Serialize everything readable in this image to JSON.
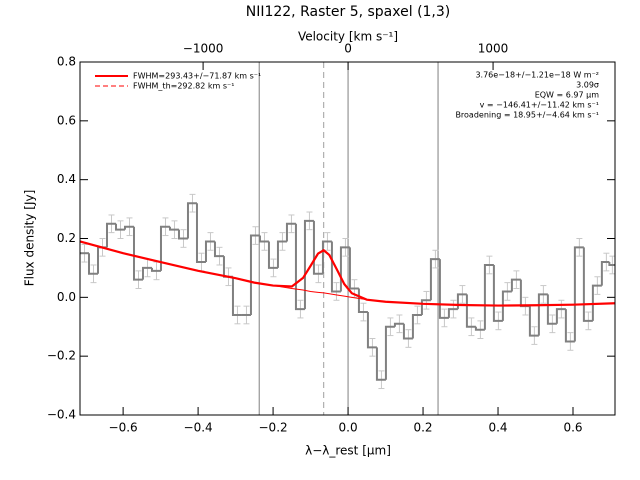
{
  "chart_data": {
    "type": "step",
    "title": "NII122, Raster 5, spaxel (1,3)",
    "xlabel": "λ−λ_rest [μm]",
    "ylabel": "Flux density [Jy]",
    "x2label": "Velocity [km s⁻¹]",
    "xlim": [
      -0.715,
      0.712
    ],
    "ylim": [
      -0.4,
      0.8
    ],
    "x2lim": [
      -1849,
      1841
    ],
    "xticks": [
      {
        "value": -0.6,
        "label": "−0.6"
      },
      {
        "value": -0.4,
        "label": "−0.4"
      },
      {
        "value": -0.2,
        "label": "−0.2"
      },
      {
        "value": 0,
        "label": "0.0"
      },
      {
        "value": 0.2,
        "label": "0.2"
      },
      {
        "value": 0.4,
        "label": "0.4"
      },
      {
        "value": 0.6,
        "label": "0.6"
      }
    ],
    "yticks": [
      {
        "value": -0.4,
        "label": "−0.4"
      },
      {
        "value": -0.2,
        "label": "−0.2"
      },
      {
        "value": 0,
        "label": "0.0"
      },
      {
        "value": 0.2,
        "label": "0.2"
      },
      {
        "value": 0.4,
        "label": "0.4"
      },
      {
        "value": 0.6,
        "label": "0.6"
      },
      {
        "value": 0.8,
        "label": "0.8"
      }
    ],
    "x2ticks": [
      {
        "value": -1000,
        "label": "−1000"
      },
      0,
      1000
    ],
    "color": "#808080",
    "error_color": "#c8c8c8",
    "x": [
      -0.703,
      -0.679,
      -0.655,
      -0.631,
      -0.607,
      -0.583,
      -0.559,
      -0.535,
      -0.511,
      -0.487,
      -0.463,
      -0.439,
      -0.415,
      -0.391,
      -0.367,
      -0.343,
      -0.319,
      -0.295,
      -0.271,
      -0.247,
      -0.223,
      -0.199,
      -0.175,
      -0.151,
      -0.127,
      -0.103,
      -0.079,
      -0.055,
      -0.031,
      -0.007,
      0.017,
      0.041,
      0.065,
      0.089,
      0.113,
      0.137,
      0.161,
      0.185,
      0.209,
      0.233,
      0.257,
      0.281,
      0.305,
      0.329,
      0.353,
      0.377,
      0.401,
      0.425,
      0.449,
      0.473,
      0.497,
      0.521,
      0.545,
      0.569,
      0.593,
      0.617,
      0.641,
      0.665,
      0.689,
      0.705
    ],
    "values": [
      0.15,
      0.08,
      0.17,
      0.25,
      0.23,
      0.24,
      0.06,
      0.1,
      0.09,
      0.24,
      0.23,
      0.2,
      0.32,
      0.12,
      0.19,
      0.14,
      0.07,
      -0.06,
      -0.06,
      0.21,
      0.19,
      0.1,
      0.19,
      0.25,
      -0.04,
      0.26,
      0.08,
      0.19,
      0.02,
      0.17,
      0.03,
      -0.05,
      -0.17,
      -0.28,
      -0.1,
      -0.09,
      -0.14,
      -0.06,
      -0.01,
      0.13,
      -0.07,
      -0.04,
      0.01,
      -0.1,
      -0.11,
      0.11,
      -0.08,
      0.02,
      0.06,
      -0.03,
      -0.13,
      0.01,
      -0.09,
      -0.04,
      -0.15,
      0.17,
      -0.08,
      0.04,
      0.12,
      0.11
    ],
    "errors": [
      0.03,
      0.03,
      0.03,
      0.03,
      0.03,
      0.03,
      0.03,
      0.03,
      0.03,
      0.03,
      0.03,
      0.03,
      0.03,
      0.03,
      0.03,
      0.03,
      0.03,
      0.03,
      0.03,
      0.03,
      0.03,
      0.03,
      0.03,
      0.03,
      0.03,
      0.03,
      0.03,
      0.03,
      0.03,
      0.03,
      0.03,
      0.03,
      0.03,
      0.03,
      0.03,
      0.03,
      0.03,
      0.03,
      0.03,
      0.03,
      0.03,
      0.03,
      0.03,
      0.03,
      0.03,
      0.03,
      0.03,
      0.03,
      0.03,
      0.03,
      0.03,
      0.03,
      0.03,
      0.03,
      0.03,
      0.03,
      0.03,
      0.03,
      0.03,
      0.03
    ],
    "fit": {
      "x": [
        -0.715,
        -0.6,
        -0.5,
        -0.4,
        -0.3,
        -0.25,
        -0.2,
        -0.15,
        -0.12,
        -0.1,
        -0.08,
        -0.065,
        -0.05,
        -0.03,
        -0.01,
        0.01,
        0.05,
        0.1,
        0.2,
        0.3,
        0.4,
        0.5,
        0.6,
        0.712
      ],
      "series": [
        {
          "color": "#ff0000",
          "width": 1,
          "values": [
            0.19,
            0.15,
            0.12,
            0.09,
            0.065,
            0.05,
            0.04,
            0.03,
            0.025,
            0.02,
            0.017,
            0.015,
            0.012,
            0.008,
            0.004,
            0.0,
            -0.008,
            -0.015,
            -0.022,
            -0.026,
            -0.028,
            -0.027,
            -0.025,
            -0.02
          ]
        },
        {
          "name": "FWHM=293.43+/−71.87 km s⁻¹",
          "color": "#ff0000",
          "width": 2.2,
          "values": [
            0.19,
            0.15,
            0.12,
            0.09,
            0.065,
            0.05,
            0.04,
            0.037,
            0.066,
            0.107,
            0.149,
            0.16,
            0.144,
            0.095,
            0.045,
            0.014,
            -0.008,
            -0.015,
            -0.022,
            -0.026,
            -0.028,
            -0.027,
            -0.025,
            -0.02
          ]
        }
      ]
    },
    "dashed_line": {
      "x": -0.065,
      "name": "FWHM_th=292.82 km s⁻¹",
      "color": "#ff0000"
    },
    "vertical_lines": [
      -0.237,
      0,
      0.24
    ],
    "annotations": [
      "3.76e−18+/−1.21e−18 W m⁻²",
      "3.09σ",
      "EQW = 6.97 μm",
      "v = −146.41+/−11.42 km s⁻¹",
      "Broadening = 18.95+/−4.64 km s⁻¹"
    ]
  }
}
